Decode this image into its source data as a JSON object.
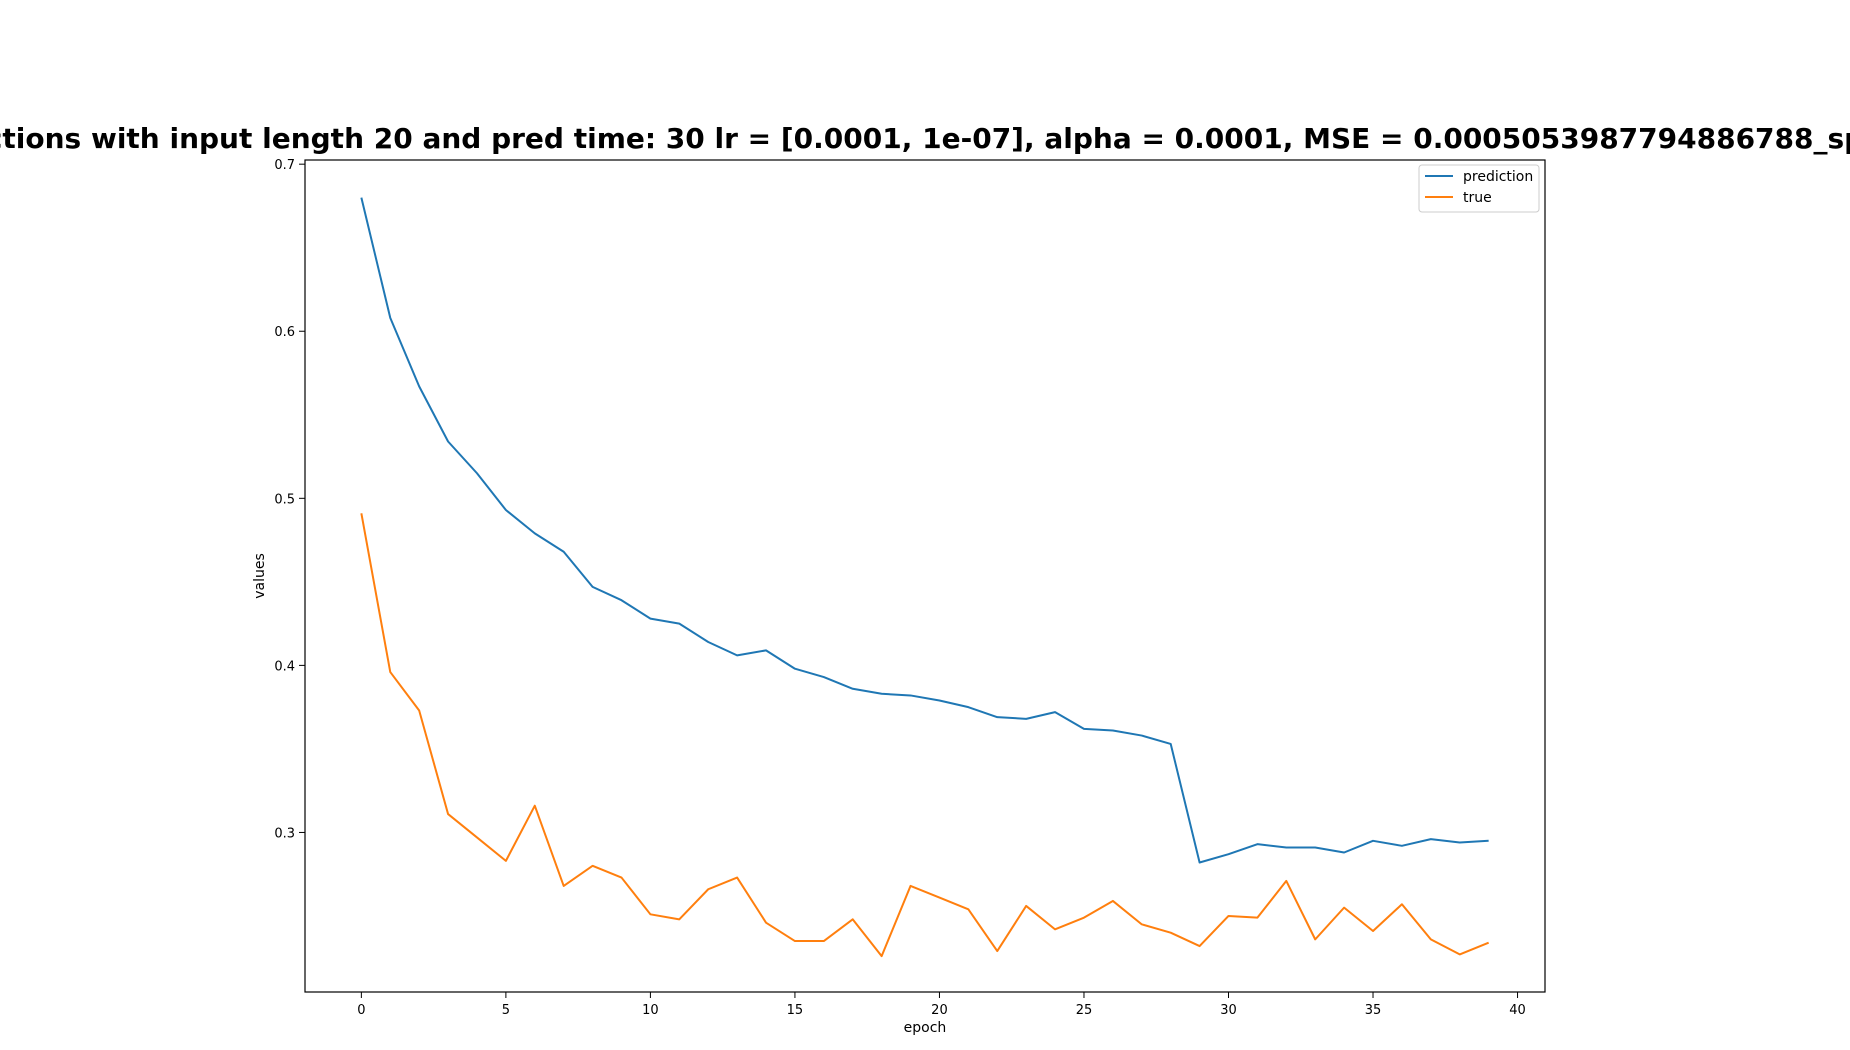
{
  "chart_data": {
    "type": "line",
    "title": "ctions with input length 20 and pred time: 30 lr = [0.0001, 1e-07], alpha = 0.0001, MSE = 0.0005053987794886788_sp",
    "xlabel": "epoch",
    "ylabel": "values",
    "xlim": [
      -1.95,
      40.95
    ],
    "ylim": [
      0.2045,
      0.7025
    ],
    "xticks": [
      0,
      5,
      10,
      15,
      20,
      25,
      30,
      35,
      40
    ],
    "yticks": [
      0.3,
      0.4,
      0.5,
      0.6,
      0.7
    ],
    "legend_position": "top-right",
    "grid": false,
    "x": [
      0,
      1,
      2,
      3,
      4,
      5,
      6,
      7,
      8,
      9,
      10,
      11,
      12,
      13,
      14,
      15,
      16,
      17,
      18,
      19,
      20,
      21,
      22,
      23,
      24,
      25,
      26,
      27,
      28,
      29,
      30,
      31,
      32,
      33,
      34,
      35,
      36,
      37,
      38,
      39
    ],
    "series": [
      {
        "name": "prediction",
        "color": "#1f77b4",
        "values": [
          0.68,
          0.608,
          0.567,
          0.534,
          0.515,
          0.493,
          0.479,
          0.468,
          0.447,
          0.439,
          0.428,
          0.425,
          0.414,
          0.406,
          0.409,
          0.398,
          0.393,
          0.386,
          0.383,
          0.382,
          0.379,
          0.375,
          0.369,
          0.368,
          0.372,
          0.362,
          0.361,
          0.358,
          0.353,
          0.282,
          0.287,
          0.293,
          0.291,
          0.291,
          0.288,
          0.295,
          0.292,
          0.296,
          0.294,
          0.295
        ]
      },
      {
        "name": "true",
        "color": "#ff7f0e",
        "values": [
          0.491,
          0.396,
          0.373,
          0.311,
          0.297,
          0.283,
          0.316,
          0.268,
          0.28,
          0.273,
          0.251,
          0.248,
          0.266,
          0.273,
          0.246,
          0.235,
          0.235,
          0.248,
          0.226,
          0.268,
          0.261,
          0.254,
          0.229,
          0.256,
          0.242,
          0.249,
          0.259,
          0.245,
          0.24,
          0.232,
          0.25,
          0.249,
          0.271,
          0.236,
          0.255,
          0.241,
          0.257,
          0.236,
          0.227,
          0.234
        ]
      }
    ]
  }
}
